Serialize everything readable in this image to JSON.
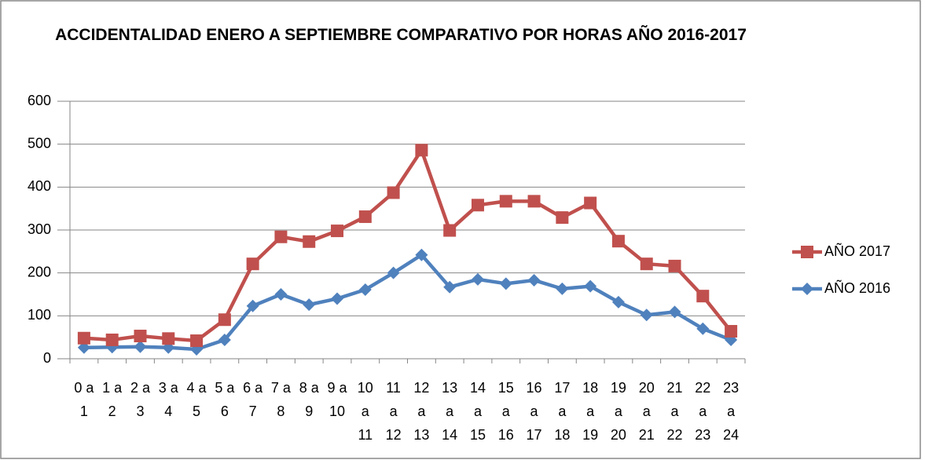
{
  "chart_data": {
    "type": "line",
    "title": "ACCIDENTALIDAD ENERO A SEPTIEMBRE COMPARATIVO POR HORAS AÑO 2016-2017",
    "categories": [
      "0 a 1",
      "1 a 2",
      "2 a 3",
      "3 a 4",
      "4 a 5",
      "5 a 6",
      "6 a 7",
      "7 a 8",
      "8 a 9",
      "9 a 10",
      "10 a 11",
      "11 a 12",
      "12 a 13",
      "13 a 14",
      "14 a 15",
      "15 a 16",
      "16 a 17",
      "17 a 18",
      "18 a 19",
      "19 a 20",
      "20 a 21",
      "21 a 22",
      "22 a 23",
      "23 a 24"
    ],
    "series": [
      {
        "name": "AÑO 2017",
        "color": "#c0504d",
        "marker": "square",
        "values": [
          48,
          44,
          53,
          47,
          42,
          91,
          221,
          284,
          273,
          298,
          331,
          387,
          486,
          299,
          358,
          367,
          367,
          329,
          363,
          274,
          221,
          216,
          146,
          64
        ]
      },
      {
        "name": "AÑO 2016",
        "color": "#4f81bd",
        "marker": "diamond",
        "values": [
          26,
          27,
          28,
          26,
          22,
          44,
          123,
          150,
          126,
          140,
          161,
          200,
          242,
          167,
          185,
          175,
          183,
          163,
          169,
          132,
          102,
          109,
          70,
          44
        ]
      }
    ],
    "ylim": [
      0,
      600
    ],
    "yticks": [
      0,
      100,
      200,
      300,
      400,
      500,
      600
    ],
    "grid": true,
    "legend": "right"
  }
}
